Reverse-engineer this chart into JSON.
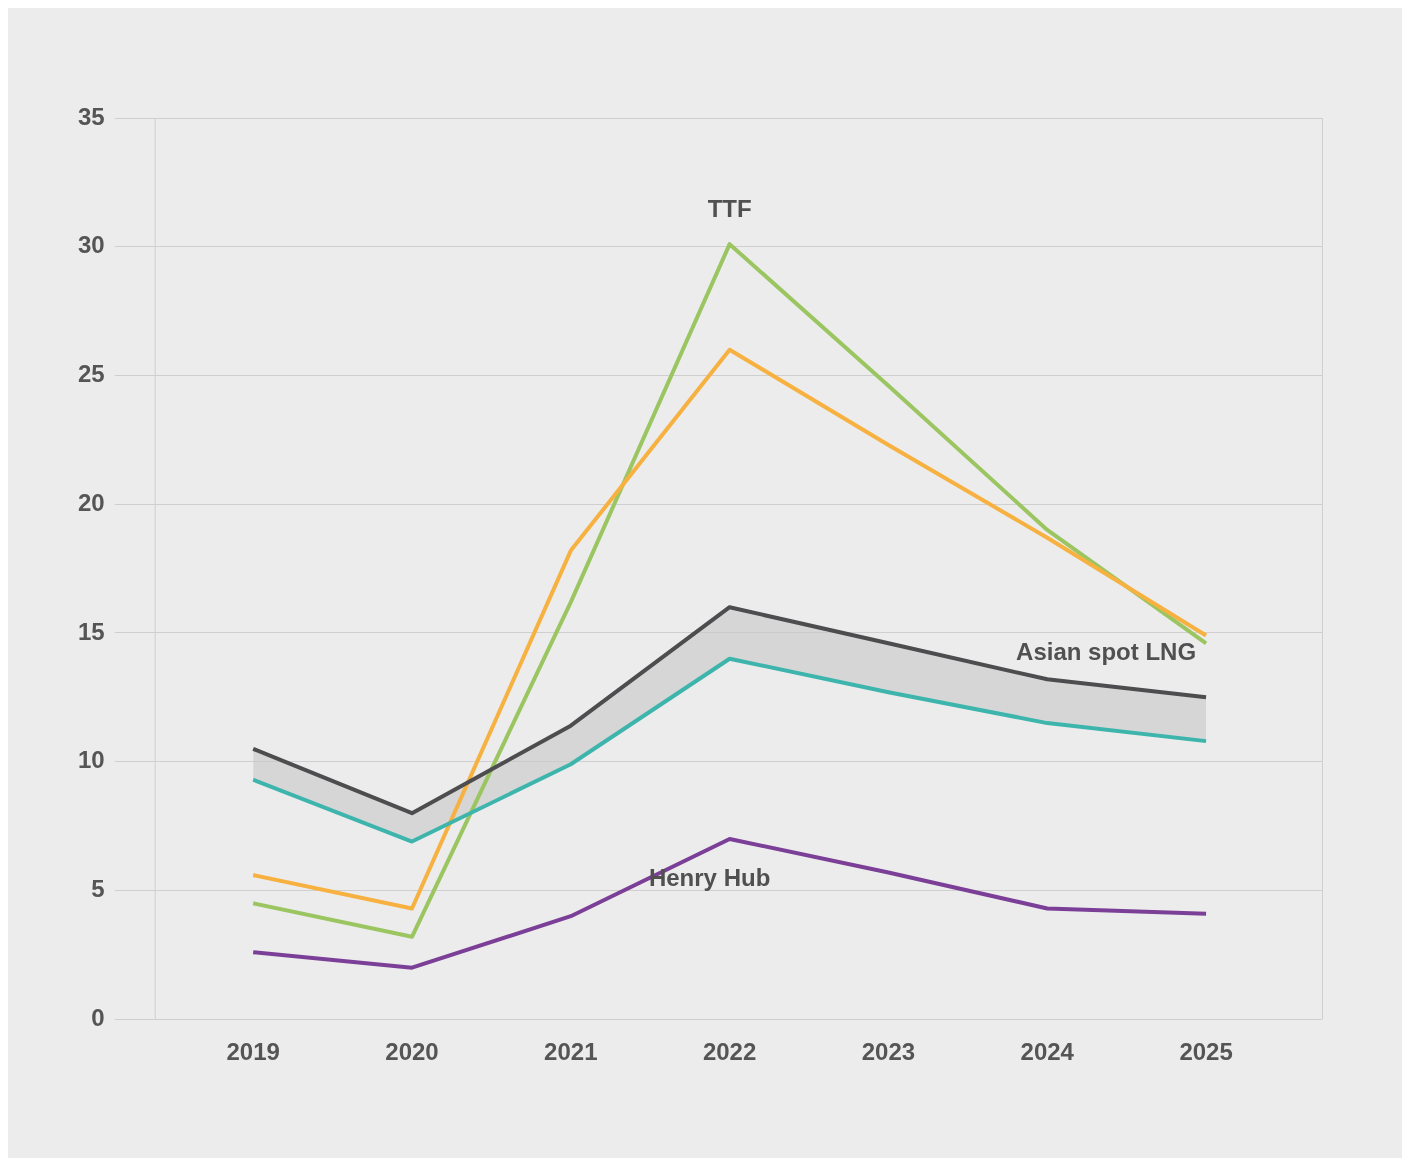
{
  "chart_data": {
    "type": "line",
    "categories": [
      "2019",
      "2020",
      "2021",
      "2022",
      "2023",
      "2024",
      "2025"
    ],
    "series": [
      {
        "name": "Asian spot LNG",
        "color": "#4d4d4f",
        "values": [
          10.5,
          8.0,
          11.4,
          16.0,
          14.6,
          13.2,
          12.5
        ]
      },
      {
        "color": "#3db5ac",
        "values": [
          9.3,
          6.9,
          9.9,
          14.0,
          12.7,
          11.5,
          10.8
        ],
        "lower": [
          9.3,
          6.9,
          9.9,
          14.0,
          12.7,
          11.5,
          10.8
        ],
        "upper": [
          10.5,
          8.0,
          11.4,
          16.0,
          14.6,
          13.2,
          12.5
        ]
      },
      {
        "color": "#f7b140",
        "values": [
          5.6,
          4.3,
          18.2,
          26.0,
          22.3,
          18.7,
          14.9
        ]
      },
      {
        "name": "TTF",
        "color": "#9bc561",
        "values": [
          4.5,
          3.2,
          16.2,
          30.1,
          24.6,
          19.0,
          14.6
        ]
      },
      {
        "name": "Henry Hub",
        "color": "#7b3f98",
        "values": [
          2.6,
          2.0,
          4.0,
          7.0,
          5.7,
          4.3,
          4.1
        ]
      }
    ],
    "ylim": [
      0,
      35
    ],
    "yticks": [
      0,
      5,
      10,
      15,
      20,
      25,
      30,
      35
    ],
    "grid": "y",
    "legend": false,
    "marker": "none",
    "line_style": "solid"
  }
}
